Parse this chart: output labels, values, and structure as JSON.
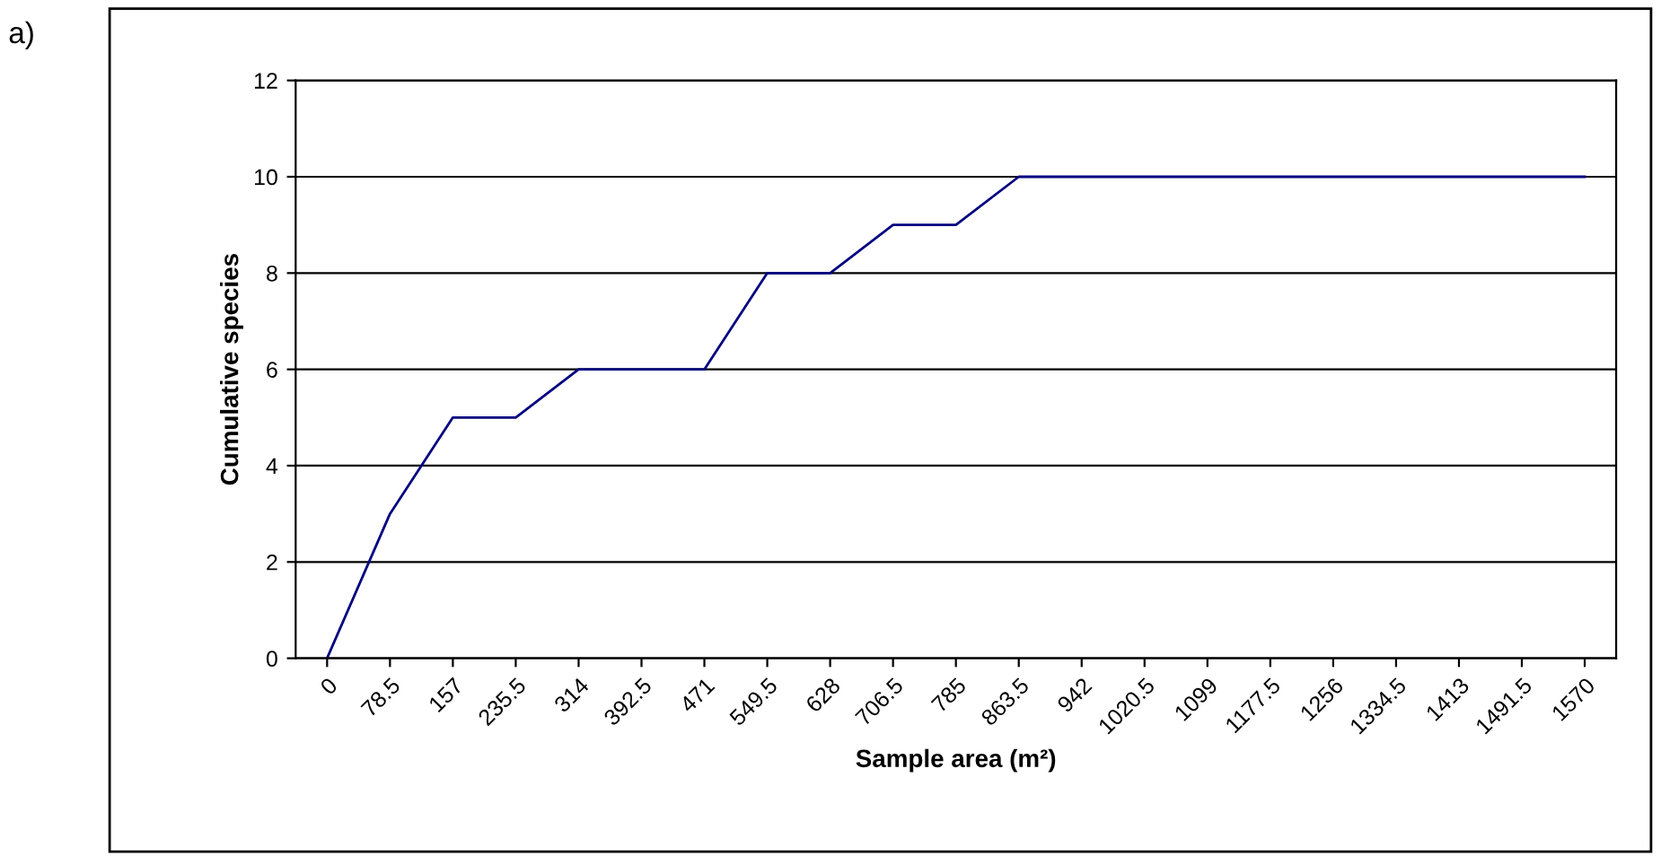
{
  "chart_data": {
    "type": "line",
    "xlabel": "Sample area (m²)",
    "ylabel": "Cumulative species",
    "categories": [
      "0",
      "78.5",
      "157",
      "235.5",
      "314",
      "392.5",
      "471",
      "549.5",
      "628",
      "706.5",
      "785",
      "863.5",
      "942",
      "1020.5",
      "1099",
      "1177.5",
      "1256",
      "1334.5",
      "1413",
      "1491.5",
      "1570"
    ],
    "series": [
      {
        "color": "#000080",
        "values": [
          0,
          3,
          5,
          5,
          6,
          6,
          6,
          8,
          8,
          9,
          9,
          10,
          10,
          10,
          10,
          10,
          10,
          10,
          10,
          10,
          10
        ]
      }
    ],
    "ylim": [
      0,
      12
    ],
    "yticks": [
      0,
      2,
      4,
      6,
      8,
      10,
      12
    ],
    "grid": "y",
    "legend": false,
    "annotations": [
      "a)"
    ]
  }
}
